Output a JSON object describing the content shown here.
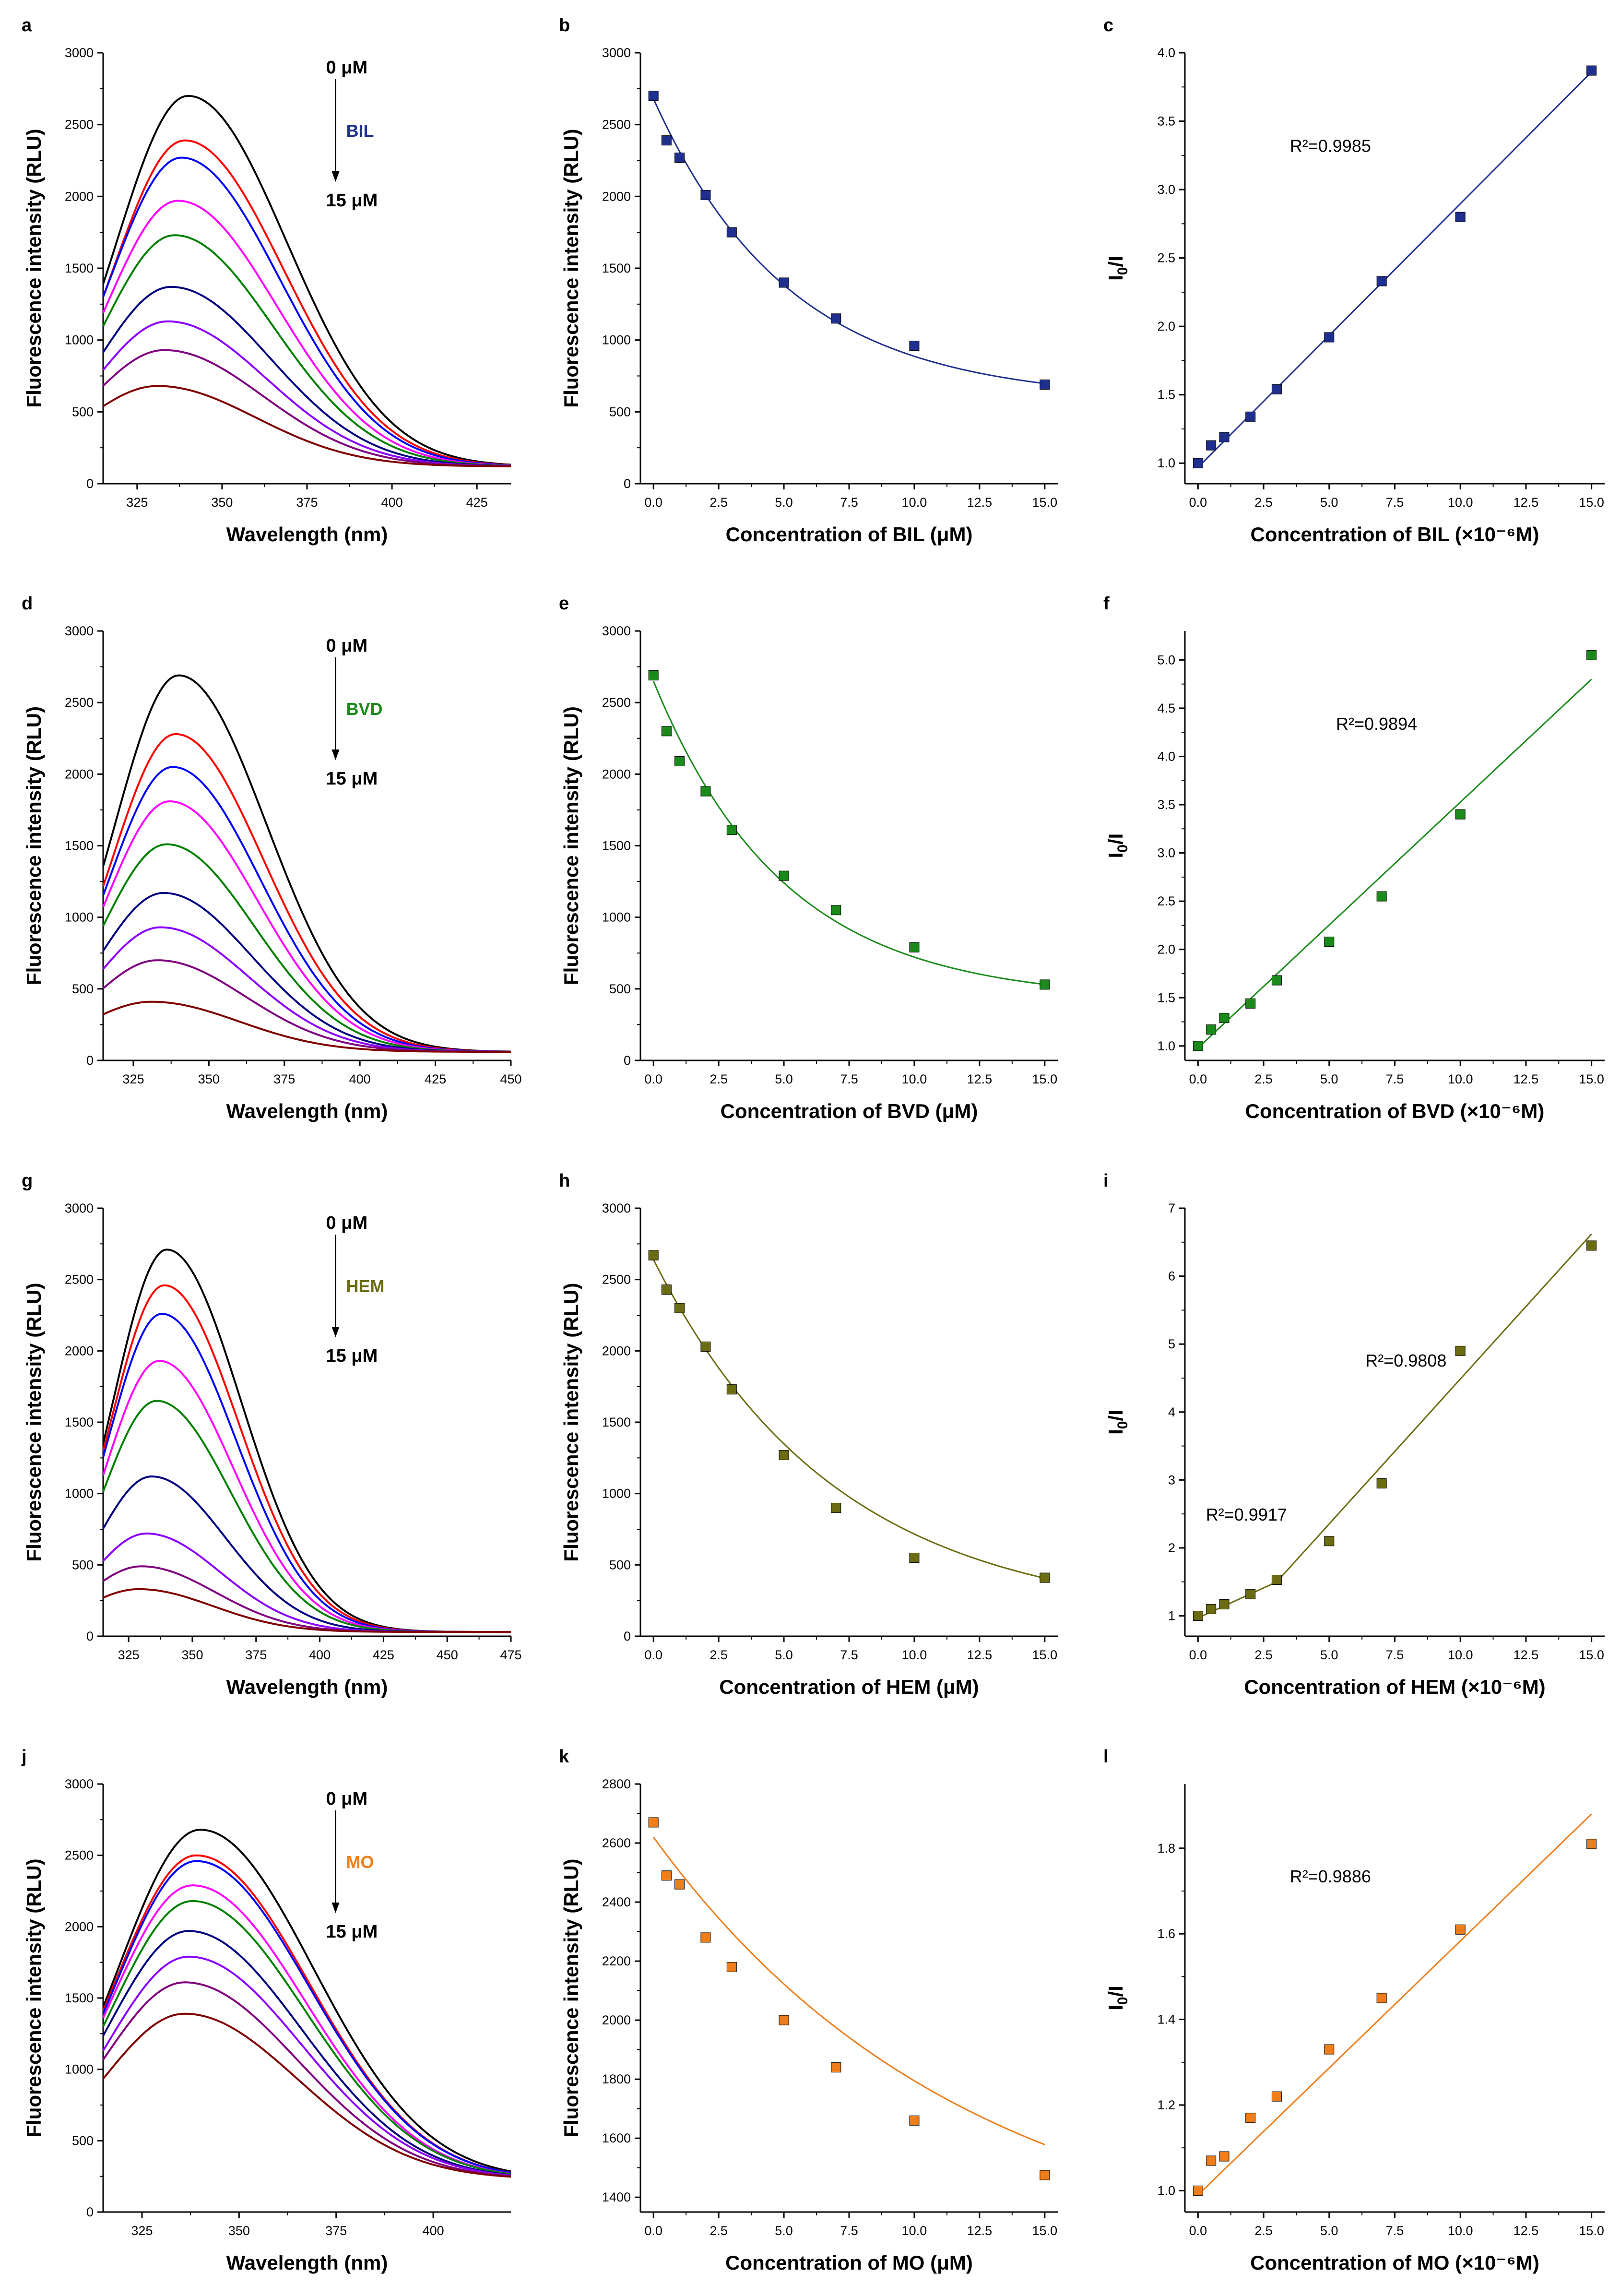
{
  "figure_domain": "fluorescence quenching figure",
  "chart_data": [
    {
      "id": "a",
      "type": "line",
      "letter": "a",
      "xlabel": "Wavelength (nm)",
      "ylabel": "Fluorescence intensity (RLU)",
      "xlim": [
        315,
        435
      ],
      "ylim": [
        0,
        3000
      ],
      "xticks": [
        325,
        350,
        375,
        400,
        425
      ],
      "yticks": [
        0,
        500,
        1000,
        1500,
        2000,
        2500,
        3000
      ],
      "xtick_decimals": 0,
      "ytick_decimals": 0,
      "start_label": "0 μM",
      "end_label": "15 μM",
      "compound": "BIL",
      "compound_color": "#1f2f8f",
      "spectra": {
        "peaks": [
          2700,
          2390,
          2270,
          1970,
          1730,
          1370,
          1130,
          930,
          680
        ],
        "peak_wavelengths": [
          340,
          339,
          338,
          337,
          336,
          335,
          334,
          333,
          331
        ],
        "end_value": 120
      }
    },
    {
      "id": "b",
      "type": "scatter",
      "letter": "b",
      "xlabel": "Concentration of BIL (μM)",
      "ylabel": "Fluorescence intensity (RLU)",
      "xlim": [
        -0.5,
        15.5
      ],
      "ylim": [
        0,
        3000
      ],
      "xticks": [
        0,
        2.5,
        5,
        7.5,
        10,
        12.5,
        15
      ],
      "yticks": [
        0,
        500,
        1000,
        1500,
        2000,
        2500,
        3000
      ],
      "xtick_decimals": 1,
      "ytick_decimals": 0,
      "color": "#1f2f8f",
      "x": [
        0,
        0.5,
        1,
        2,
        3,
        5,
        7,
        10,
        15
      ],
      "y": [
        2700,
        2390,
        2270,
        2010,
        1750,
        1400,
        1150,
        960,
        690
      ],
      "fit": {
        "kind": "exp",
        "y0": 580,
        "A": 2100,
        "t": 5.2
      }
    },
    {
      "id": "c",
      "type": "scatter",
      "letter": "c",
      "xlabel": "Concentration of BIL (×10⁻⁶M)",
      "ylabel": "I0/I",
      "xlim": [
        -0.5,
        15.5
      ],
      "ylim": [
        0.85,
        4.0
      ],
      "xticks": [
        0,
        2.5,
        5,
        7.5,
        10,
        12.5,
        15
      ],
      "yticks": [
        1.0,
        1.5,
        2.0,
        2.5,
        3.0,
        3.5,
        4.0
      ],
      "xtick_decimals": 1,
      "ytick_decimals": 1,
      "color": "#1f2f8f",
      "x": [
        0,
        0.5,
        1,
        2,
        3,
        5,
        7,
        10,
        15
      ],
      "y": [
        1.0,
        1.13,
        1.19,
        1.34,
        1.54,
        1.92,
        2.33,
        2.8,
        3.87
      ],
      "fit": {
        "kind": "linear",
        "segments": [
          [
            0,
            0.97,
            15,
            3.86
          ]
        ]
      },
      "r2": [
        "R²=0.9985"
      ]
    },
    {
      "id": "d",
      "type": "line",
      "letter": "d",
      "xlabel": "Wavelength (nm)",
      "ylabel": "Fluorescence intensity (RLU)",
      "xlim": [
        315,
        450
      ],
      "ylim": [
        0,
        3000
      ],
      "xticks": [
        325,
        350,
        375,
        400,
        425,
        450
      ],
      "yticks": [
        0,
        500,
        1000,
        1500,
        2000,
        2500,
        3000
      ],
      "xtick_decimals": 0,
      "ytick_decimals": 0,
      "start_label": "0 μM",
      "end_label": "15 μM",
      "compound": "BVD",
      "compound_color": "#1a8a1a",
      "spectra": {
        "peaks": [
          2690,
          2280,
          2050,
          1810,
          1510,
          1170,
          930,
          700,
          410
        ],
        "peak_wavelengths": [
          340,
          339,
          338,
          337,
          336,
          335,
          334,
          333,
          331
        ],
        "end_value": 60
      }
    },
    {
      "id": "e",
      "type": "scatter",
      "letter": "e",
      "xlabel": "Concentration of BVD (μM)",
      "ylabel": "Fluorescence intensity (RLU)",
      "xlim": [
        -0.5,
        15.5
      ],
      "ylim": [
        0,
        3000
      ],
      "xticks": [
        0,
        2.5,
        5,
        7.5,
        10,
        12.5,
        15
      ],
      "yticks": [
        0,
        500,
        1000,
        1500,
        2000,
        2500,
        3000
      ],
      "xtick_decimals": 1,
      "ytick_decimals": 0,
      "color": "#1a8a1a",
      "x": [
        0,
        0.5,
        1,
        2,
        3,
        5,
        7,
        10,
        15
      ],
      "y": [
        2690,
        2300,
        2090,
        1880,
        1610,
        1290,
        1050,
        790,
        530
      ],
      "fit": {
        "kind": "exp",
        "y0": 420,
        "A": 2230,
        "t": 5.0
      }
    },
    {
      "id": "f",
      "type": "scatter",
      "letter": "f",
      "xlabel": "Concentration of BVD (×10⁻⁶M)",
      "ylabel": "I0/I",
      "xlim": [
        -0.5,
        15.5
      ],
      "ylim": [
        0.85,
        5.3
      ],
      "xticks": [
        0,
        2.5,
        5,
        7.5,
        10,
        12.5,
        15
      ],
      "yticks": [
        1.0,
        1.5,
        2.0,
        2.5,
        3.0,
        3.5,
        4.0,
        4.5,
        5.0
      ],
      "xtick_decimals": 1,
      "ytick_decimals": 1,
      "color": "#1a8a1a",
      "x": [
        0,
        0.5,
        1,
        2,
        3,
        5,
        7,
        10,
        15
      ],
      "y": [
        1.0,
        1.17,
        1.29,
        1.44,
        1.68,
        2.08,
        2.55,
        3.4,
        5.05
      ],
      "fit": {
        "kind": "linear",
        "segments": [
          [
            0,
            0.98,
            15,
            4.8
          ]
        ]
      },
      "r2": [
        "R²=0.9894"
      ]
    },
    {
      "id": "g",
      "type": "line",
      "letter": "g",
      "xlabel": "Wavelength (nm)",
      "ylabel": "Fluorescence intensity (RLU)",
      "xlim": [
        315,
        475
      ],
      "ylim": [
        0,
        3000
      ],
      "xticks": [
        325,
        350,
        375,
        400,
        425,
        450,
        475
      ],
      "yticks": [
        0,
        500,
        1000,
        1500,
        2000,
        2500,
        3000
      ],
      "xtick_decimals": 0,
      "ytick_decimals": 0,
      "start_label": "0 μM",
      "end_label": "15 μM",
      "compound": "HEM",
      "compound_color": "#6b6b12",
      "spectra": {
        "peaks": [
          2710,
          2460,
          2260,
          1930,
          1650,
          1120,
          720,
          490,
          330
        ],
        "peak_wavelengths": [
          340,
          339,
          338,
          337,
          336,
          334,
          332,
          330,
          329
        ],
        "end_value": 30
      }
    },
    {
      "id": "h",
      "type": "scatter",
      "letter": "h",
      "xlabel": "Concentration of HEM (μM)",
      "ylabel": "Fluorescence intensity (RLU)",
      "xlim": [
        -0.5,
        15.5
      ],
      "ylim": [
        0,
        3000
      ],
      "xticks": [
        0,
        2.5,
        5,
        7.5,
        10,
        12.5,
        15
      ],
      "yticks": [
        0,
        500,
        1000,
        1500,
        2000,
        2500,
        3000
      ],
      "xtick_decimals": 1,
      "ytick_decimals": 0,
      "color": "#6b6b12",
      "x": [
        0,
        0.5,
        1,
        2,
        3,
        5,
        7,
        10,
        15
      ],
      "y": [
        2670,
        2430,
        2300,
        2030,
        1730,
        1270,
        900,
        550,
        410
      ],
      "fit": {
        "kind": "exp",
        "y0": 110,
        "A": 2530,
        "t": 7.0
      }
    },
    {
      "id": "i",
      "type": "scatter",
      "letter": "i",
      "xlabel": "Concentration of HEM (×10⁻⁶M)",
      "ylabel": "I0/I",
      "xlim": [
        -0.5,
        15.5
      ],
      "ylim": [
        0.7,
        7.0
      ],
      "xticks": [
        0,
        2.5,
        5,
        7.5,
        10,
        12.5,
        15
      ],
      "yticks": [
        1,
        2,
        3,
        4,
        5,
        6,
        7
      ],
      "xtick_decimals": 1,
      "ytick_decimals": 0,
      "color": "#6b6b12",
      "x": [
        0,
        0.5,
        1,
        2,
        3,
        5,
        7,
        10,
        15
      ],
      "y": [
        1.0,
        1.1,
        1.17,
        1.32,
        1.53,
        2.1,
        2.95,
        4.9,
        6.45
      ],
      "fit": {
        "kind": "linear",
        "segments": [
          [
            0,
            0.97,
            3,
            1.5
          ],
          [
            3,
            1.5,
            15,
            6.62
          ]
        ]
      },
      "r2": [
        "R²=0.9808",
        "R²=0.9917"
      ]
    },
    {
      "id": "j",
      "type": "line",
      "letter": "j",
      "xlabel": "Wavelength (nm)",
      "ylabel": "Fluorescence intensity (RLU)",
      "xlim": [
        315,
        420
      ],
      "ylim": [
        0,
        3000
      ],
      "xticks": [
        325,
        350,
        375,
        400
      ],
      "yticks": [
        0,
        500,
        1000,
        1500,
        2000,
        2500,
        3000
      ],
      "xtick_decimals": 0,
      "ytick_decimals": 0,
      "start_label": "0 μM",
      "end_label": "15 μM",
      "compound": "MO",
      "compound_color": "#ee7d1a",
      "spectra": {
        "peaks": [
          2680,
          2500,
          2460,
          2290,
          2180,
          1970,
          1790,
          1610,
          1390
        ],
        "peak_wavelengths": [
          340,
          339,
          339,
          338,
          338,
          337,
          337,
          336,
          336
        ],
        "end_value": 230
      }
    },
    {
      "id": "k",
      "type": "scatter",
      "letter": "k",
      "xlabel": "Concentration of MO (μM)",
      "ylabel": "Fluorescence intensity (RLU)",
      "xlim": [
        -0.5,
        15.5
      ],
      "ylim": [
        1350,
        2800
      ],
      "xticks": [
        0,
        2.5,
        5,
        7.5,
        10,
        12.5,
        15
      ],
      "yticks": [
        1400,
        1600,
        1800,
        2000,
        2200,
        2400,
        2600,
        2800
      ],
      "xtick_decimals": 1,
      "ytick_decimals": 0,
      "color": "#ee7d1a",
      "x": [
        0,
        0.5,
        1,
        2,
        3,
        5,
        7,
        10,
        15
      ],
      "y": [
        2670,
        2490,
        2460,
        2280,
        2180,
        2000,
        1840,
        1660,
        1475
      ],
      "fit": {
        "kind": "exp",
        "y0": 1160,
        "A": 1460,
        "t": 12.0
      }
    },
    {
      "id": "l",
      "type": "scatter",
      "letter": "l",
      "xlabel": "Concentration of MO (×10⁻⁶M)",
      "ylabel": "I0/I",
      "xlim": [
        -0.5,
        15.5
      ],
      "ylim": [
        0.95,
        1.95
      ],
      "xticks": [
        0,
        2.5,
        5,
        7.5,
        10,
        12.5,
        15
      ],
      "yticks": [
        1.0,
        1.2,
        1.4,
        1.6,
        1.8
      ],
      "xtick_decimals": 1,
      "ytick_decimals": 1,
      "color": "#ee7d1a",
      "x": [
        0,
        0.5,
        1,
        2,
        3,
        5,
        7,
        10,
        15
      ],
      "y": [
        1.0,
        1.07,
        1.08,
        1.17,
        1.22,
        1.33,
        1.45,
        1.61,
        1.81
      ],
      "fit": {
        "kind": "linear",
        "segments": [
          [
            0,
            0.99,
            15,
            1.88
          ]
        ]
      },
      "r2": [
        "R²=0.9886"
      ]
    }
  ],
  "spectrum_colors": [
    "#000000",
    "#ff0000",
    "#0000ff",
    "#ff00ff",
    "#008000",
    "#000080",
    "#8b00ff",
    "#800080",
    "#800000"
  ]
}
